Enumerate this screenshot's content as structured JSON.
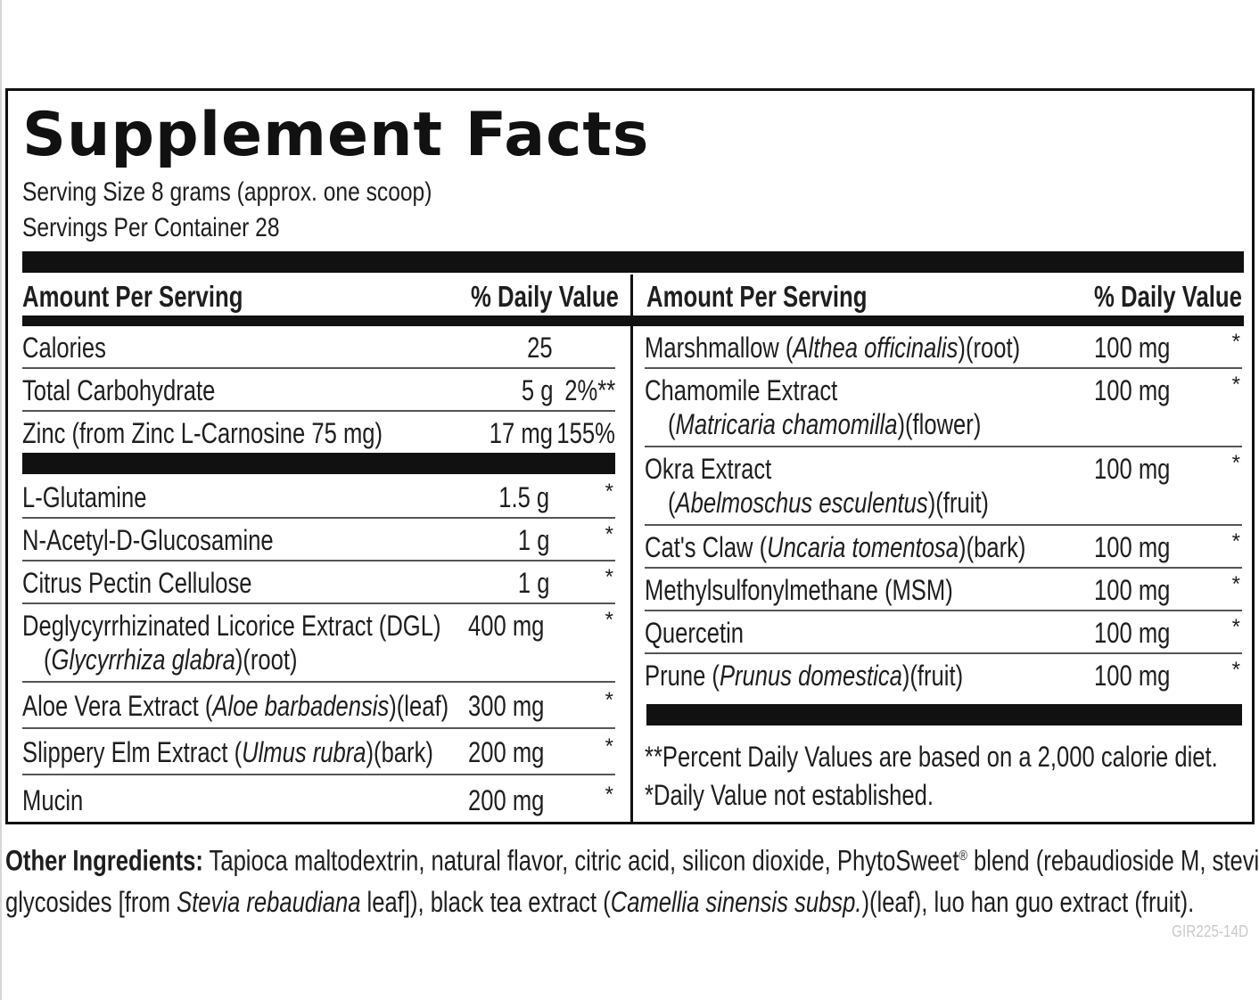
{
  "title": "Supplement Facts",
  "serving_size": "Serving Size 8 grams (approx. one scoop)",
  "servings_per_container": "Servings Per Container 28",
  "left_header": {
    "amount": "Amount Per Serving",
    "dv": "% Daily Value"
  },
  "right_header": {
    "amount": "Amount Per Serving",
    "dv": "% Daily Value"
  },
  "nutrients": [
    {
      "name": "Calories",
      "amount": "25",
      "dv": ""
    },
    {
      "name": "Total Carbohydrate",
      "amount": "5 g",
      "dv": "2%**"
    },
    {
      "name": "Zinc (from Zinc L-Carnosine 75 mg)",
      "amount": "17 mg",
      "dv": "155%"
    }
  ],
  "left_ingredients": [
    {
      "pre": "L-Glutamine",
      "italic": "",
      "post": "",
      "line2_pre": "",
      "line2_italic": "",
      "line2_post": "",
      "amount": "1.5 g",
      "dv": "*"
    },
    {
      "pre": "N-Acetyl-D-Glucosamine",
      "italic": "",
      "post": "",
      "line2_pre": "",
      "line2_italic": "",
      "line2_post": "",
      "amount": "1 g",
      "dv": "*"
    },
    {
      "pre": "Citrus Pectin Cellulose",
      "italic": "",
      "post": "",
      "line2_pre": "",
      "line2_italic": "",
      "line2_post": "",
      "amount": "1 g",
      "dv": "*"
    },
    {
      "pre": "Deglycyrrhizinated Licorice Extract (DGL)",
      "italic": "",
      "post": "",
      "line2_pre": "(",
      "line2_italic": "Glycyrrhiza glabra",
      "line2_post": ")(root)",
      "amount": "400 mg",
      "dv": "*"
    },
    {
      "pre": "Aloe Vera Extract (",
      "italic": "Aloe barbadensis",
      "post": ")(leaf)",
      "line2_pre": "",
      "line2_italic": "",
      "line2_post": "",
      "amount": "300 mg",
      "dv": "*"
    },
    {
      "pre": "Slippery Elm Extract (",
      "italic": "Ulmus rubra",
      "post": ")(bark)",
      "line2_pre": "",
      "line2_italic": "",
      "line2_post": "",
      "amount": "200 mg",
      "dv": "*"
    },
    {
      "pre": "Mucin",
      "italic": "",
      "post": "",
      "line2_pre": "",
      "line2_italic": "",
      "line2_post": "",
      "amount": "200 mg",
      "dv": "*"
    }
  ],
  "right_ingredients": [
    {
      "pre": "Marshmallow (",
      "italic": "Althea officinalis",
      "post": ")(root)",
      "line2_pre": "",
      "line2_italic": "",
      "line2_post": "",
      "amount": "100 mg",
      "dv": "*"
    },
    {
      "pre": "Chamomile Extract",
      "italic": "",
      "post": "",
      "line2_pre": "(",
      "line2_italic": "Matricaria chamomilla",
      "line2_post": ")(flower)",
      "amount": "100 mg",
      "dv": "*"
    },
    {
      "pre": "Okra Extract",
      "italic": "",
      "post": "",
      "line2_pre": "(",
      "line2_italic": "Abelmoschus esculentus",
      "line2_post": ")(fruit)",
      "amount": "100 mg",
      "dv": "*"
    },
    {
      "pre": "Cat's Claw (",
      "italic": "Uncaria tomentosa",
      "post": ")(bark)",
      "line2_pre": "",
      "line2_italic": "",
      "line2_post": "",
      "amount": "100 mg",
      "dv": "*"
    },
    {
      "pre": "Methylsulfonylmethane (MSM)",
      "italic": "",
      "post": "",
      "line2_pre": "",
      "line2_italic": "",
      "line2_post": "",
      "amount": "100 mg",
      "dv": "*"
    },
    {
      "pre": "Quercetin",
      "italic": "",
      "post": "",
      "line2_pre": "",
      "line2_italic": "",
      "line2_post": "",
      "amount": "100 mg",
      "dv": "*"
    },
    {
      "pre": "Prune (",
      "italic": "Prunus domestica",
      "post": ")(fruit)",
      "line2_pre": "",
      "line2_italic": "",
      "line2_post": "",
      "amount": "100 mg",
      "dv": "*"
    }
  ],
  "footnotes": {
    "percent": "**Percent Daily Values are based on a 2,000 calorie diet.",
    "not_established": "*Daily Value not established."
  },
  "other_ingredients": {
    "label": "Other Ingredients:",
    "line1_a": " Tapioca maltodextrin, natural flavor, citric acid, silicon dioxide, PhytoSweet",
    "line1_reg": "®",
    "line1_b": " blend (rebaudioside M, steviol",
    "line2_a": "glycosides [from ",
    "line2_italic1": "Stevia rebaudiana",
    "line2_b": " leaf]), black tea extract (",
    "line2_italic2": "Camellia sinensis subsp.",
    "line2_c": ")(leaf), luo han guo extract (fruit)."
  },
  "product_code": "GIR225-14D"
}
